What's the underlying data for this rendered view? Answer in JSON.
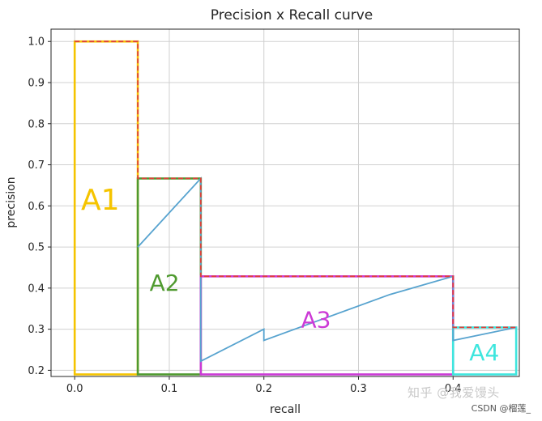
{
  "chart_data": {
    "type": "line",
    "title": "Precision x Recall curve",
    "xlabel": "recall",
    "ylabel": "precision",
    "xlim": [
      -0.025,
      0.47
    ],
    "ylim": [
      0.185,
      1.03
    ],
    "xticks": [
      0.0,
      0.1,
      0.2,
      0.3,
      0.4
    ],
    "xtick_labels": [
      "0.0",
      "0.1",
      "0.2",
      "0.3",
      "0.4"
    ],
    "yticks": [
      0.2,
      0.3,
      0.4,
      0.5,
      0.6,
      0.7,
      0.8,
      0.9,
      1.0
    ],
    "ytick_labels": [
      "0.2",
      "0.3",
      "0.4",
      "0.5",
      "0.6",
      "0.7",
      "0.8",
      "0.9",
      "1.0"
    ],
    "grid": true,
    "series": [
      {
        "color": "#57a3cf",
        "style": "solid",
        "x": [
          0.0667,
          0.1333,
          0.1333,
          0.2,
          0.2,
          0.3333,
          0.4,
          0.4,
          0.4667
        ],
        "y": [
          0.5,
          0.6667,
          0.2222,
          0.3,
          0.2727,
          0.3846,
          0.4286,
          0.2727,
          0.3043
        ]
      },
      {
        "color": "#e0403a",
        "style": "dashed",
        "x": [
          0.0,
          0.0667,
          0.0667,
          0.1333,
          0.1333,
          0.4,
          0.4,
          0.4667
        ],
        "y": [
          1.0,
          1.0,
          0.6667,
          0.6667,
          0.4286,
          0.4286,
          0.3043,
          0.3043
        ]
      }
    ],
    "areas": [
      {
        "label": "A1",
        "color": "#f5c400",
        "x0": 0.0,
        "x1": 0.0667,
        "y0": 0.19,
        "y1": 1.0,
        "label_x": 0.027,
        "label_y": 0.61,
        "font_size": 36,
        "serif": true
      },
      {
        "label": "A2",
        "color": "#4f9a2f",
        "x0": 0.0667,
        "x1": 0.1333,
        "y0": 0.19,
        "y1": 0.6667,
        "label_x": 0.095,
        "label_y": 0.41,
        "font_size": 28,
        "serif": false
      },
      {
        "label": "A3",
        "color": "#cc3ad6",
        "x0": 0.1333,
        "x1": 0.4,
        "y0": 0.19,
        "y1": 0.4286,
        "label_x": 0.255,
        "label_y": 0.32,
        "font_size": 28,
        "serif": false
      },
      {
        "label": "A4",
        "color": "#3fe6de",
        "x0": 0.4,
        "x1": 0.4667,
        "y0": 0.19,
        "y1": 0.3043,
        "label_x": 0.433,
        "label_y": 0.24,
        "font_size": 28,
        "serif": false
      }
    ]
  },
  "watermark": {
    "main": "知乎 @我爱馒头",
    "credit": "CSDN @榴莲_"
  }
}
